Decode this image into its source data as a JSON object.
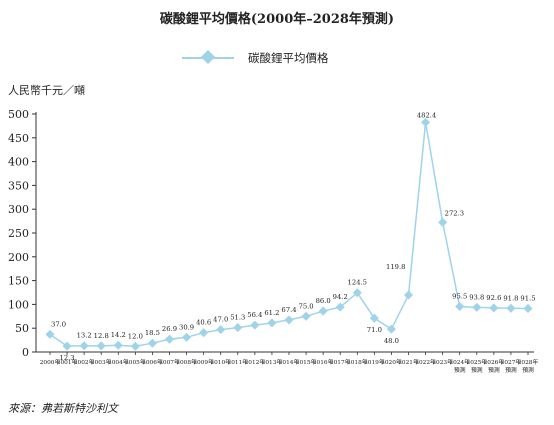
{
  "title": "碳酸鋰平均價格(2000年–2028年預測)",
  "yunit": "人民幣千元／噸",
  "source": "來源：弗若斯特沙利文",
  "colors": {
    "series": "#9fd3ea",
    "axis": "#333333"
  },
  "chart_data": {
    "type": "line",
    "title": "碳酸鋰平均價格(2000年–2028年預測)",
    "ylabel": "人民幣千元／噸",
    "xlabel": "",
    "ylim": [
      0,
      500
    ],
    "yticks": [
      0,
      50,
      100,
      150,
      200,
      250,
      300,
      350,
      400,
      450,
      500
    ],
    "grid": false,
    "legend": "top-center",
    "categories": [
      "2000年",
      "2001年",
      "2002年",
      "2003年",
      "2004年",
      "2005年",
      "2006年",
      "2007年",
      "2008年",
      "2009年",
      "2010年",
      "2011年",
      "2012年",
      "2013年",
      "2014年",
      "2015年",
      "2016年",
      "2017年",
      "2018年",
      "2019年",
      "2020年",
      "2021年",
      "2022年",
      "2023年",
      "2024年預測",
      "2025年預測",
      "2026年預測",
      "2027年預測",
      "2028年預測"
    ],
    "series": [
      {
        "name": "碳酸鋰平均價格",
        "values": [
          37.0,
          12.3,
          13.2,
          12.8,
          14.2,
          12.0,
          18.5,
          26.9,
          30.9,
          40.6,
          47.0,
          51.3,
          56.4,
          61.2,
          67.4,
          75.0,
          86.0,
          94.2,
          124.5,
          71.0,
          48.0,
          119.8,
          482.4,
          272.3,
          95.5,
          93.8,
          92.6,
          91.8,
          91.5
        ]
      }
    ]
  }
}
